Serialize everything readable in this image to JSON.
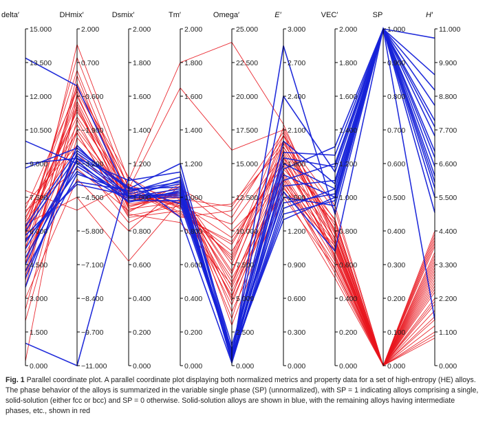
{
  "chart_data": {
    "type": "parallel_coordinates",
    "axes": [
      {
        "name": "delta′",
        "italic": false,
        "min": 0,
        "max": 15,
        "ticks": [
          "0.000",
          "1.500",
          "3.000",
          "4.500",
          "6.000",
          "7.500",
          "9.000",
          "10.500",
          "12.000",
          "13.500",
          "15.000"
        ]
      },
      {
        "name": "DHmix′",
        "italic": false,
        "min": -11,
        "max": 2,
        "ticks": [
          "−11.000",
          "−9.700",
          "−8.400",
          "−7.100",
          "−5.800",
          "−4.500",
          "−3.200",
          "−1.900",
          "−0.600",
          "0.700",
          "2.000"
        ]
      },
      {
        "name": "Dsmix′",
        "italic": false,
        "min": 0,
        "max": 2,
        "ticks": [
          "0.000",
          "0.200",
          "0.400",
          "0.600",
          "0.800",
          "1.000",
          "1.200",
          "1.400",
          "1.600",
          "1.800",
          "2.000"
        ]
      },
      {
        "name": "Tm′",
        "italic": false,
        "min": 0,
        "max": 2,
        "ticks": [
          "0.000",
          "0.200",
          "0.400",
          "0.600",
          "0.800",
          "1.000",
          "1.200",
          "1.400",
          "1.600",
          "1.800",
          "2.000"
        ]
      },
      {
        "name": "Omega′",
        "italic": false,
        "min": 0,
        "max": 25,
        "ticks": [
          "0.000",
          "2.500",
          "5.000",
          "7.500",
          "10.000",
          "12.500",
          "15.000",
          "17.500",
          "20.000",
          "22.500",
          "25.000"
        ]
      },
      {
        "name": "E′",
        "italic": true,
        "min": 0,
        "max": 3,
        "ticks": [
          "0.000",
          "0.300",
          "0.600",
          "0.900",
          "1.200",
          "1.500",
          "1.800",
          "2.100",
          "2.400",
          "2.700",
          "3.000"
        ]
      },
      {
        "name": "VEC′",
        "italic": false,
        "min": 0,
        "max": 2,
        "ticks": [
          "0.000",
          "0.200",
          "0.400",
          "0.600",
          "0.800",
          "1.000",
          "1.200",
          "1.400",
          "1.600",
          "1.800",
          "2.000"
        ]
      },
      {
        "name": "SP",
        "italic": false,
        "min": 0,
        "max": 1,
        "ticks": [
          "0.000",
          "0.100",
          "0.200",
          "0.300",
          "0.400",
          "0.500",
          "0.600",
          "0.700",
          "0.800",
          "0.900",
          "1.000"
        ]
      },
      {
        "name": "H′",
        "italic": true,
        "min": 0,
        "max": 11,
        "ticks": [
          "0.000",
          "1.100",
          "2.200",
          "3.300",
          "4.400",
          "5.500",
          "6.600",
          "7.700",
          "8.800",
          "9.900",
          "11.000"
        ]
      }
    ],
    "series": [
      {
        "color": "#e8141c",
        "lines": [
          [
            4.5,
            1.4,
            1.1,
            1.8,
            24.0,
            2.15,
            0.75,
            0,
            3.9
          ],
          [
            5.5,
            0.9,
            1.05,
            1.65,
            16.0,
            2.1,
            0.7,
            0,
            4.2
          ],
          [
            6.0,
            0.4,
            1.0,
            1.05,
            11.0,
            2.05,
            0.75,
            0,
            3.5
          ],
          [
            6.2,
            -0.2,
            1.02,
            0.95,
            8.0,
            2.0,
            0.78,
            0,
            2.5
          ],
          [
            3.5,
            0.2,
            0.95,
            1.0,
            5.0,
            1.95,
            0.8,
            0,
            1.5
          ],
          [
            5.8,
            -0.8,
            0.98,
            1.02,
            7.0,
            1.9,
            0.72,
            0,
            2.0
          ],
          [
            6.5,
            -1.2,
            1.05,
            0.9,
            9.0,
            1.85,
            0.65,
            0,
            3.0
          ],
          [
            2.5,
            -1.5,
            0.9,
            0.85,
            6.0,
            1.8,
            0.68,
            0,
            2.8
          ],
          [
            0.2,
            -0.5,
            0.93,
            0.97,
            4.5,
            1.75,
            0.85,
            0,
            4.0
          ],
          [
            6.8,
            -2.0,
            0.88,
            0.92,
            8.5,
            1.7,
            0.62,
            0,
            3.3
          ],
          [
            7.2,
            -2.5,
            1.0,
            1.05,
            10.0,
            1.65,
            0.55,
            0,
            2.2
          ],
          [
            5.0,
            -3.0,
            0.85,
            0.99,
            5.5,
            1.6,
            0.6,
            0,
            1.0
          ],
          [
            3.0,
            -3.8,
            0.8,
            1.07,
            4.0,
            1.5,
            0.58,
            0,
            3.6
          ],
          [
            6.3,
            -4.5,
            0.62,
            0.98,
            6.5,
            1.55,
            0.52,
            0,
            2.6
          ],
          [
            7.8,
            -5.0,
            1.08,
            0.88,
            11.5,
            2.0,
            0.92,
            0,
            1.8
          ],
          [
            4.2,
            -1.0,
            0.94,
            1.03,
            7.5,
            2.05,
            0.95,
            0,
            2.9
          ],
          [
            5.2,
            -0.3,
            1.12,
            0.93,
            12.0,
            1.95,
            0.83,
            0,
            0.9
          ],
          [
            6.1,
            -1.7,
            0.96,
            1.01,
            3.5,
            1.85,
            0.87,
            0,
            4.4
          ],
          [
            2.0,
            -2.2,
            1.01,
            0.96,
            9.5,
            1.78,
            0.74,
            0,
            3.1
          ],
          [
            5.6,
            -0.6,
            0.99,
            1.0,
            6.2,
            1.72,
            0.66,
            0,
            1.6
          ],
          [
            6.6,
            -1.4,
            1.03,
            0.94,
            10.5,
            1.88,
            0.63,
            0,
            4.1
          ],
          [
            4.8,
            -2.8,
            0.97,
            1.06,
            4.8,
            1.62,
            0.69,
            0,
            2.4
          ],
          [
            3.8,
            -0.1,
            1.06,
            0.91,
            8.2,
            2.12,
            0.79,
            0,
            3.7
          ],
          [
            6.9,
            -3.4,
            0.92,
            1.04,
            5.8,
            1.68,
            0.57,
            0,
            1.3
          ],
          [
            5.3,
            -1.9,
            1.0,
            0.97,
            7.8,
            1.92,
            0.81,
            0,
            2.7
          ],
          [
            4.0,
            -0.9,
            0.91,
            1.08,
            3.0,
            1.58,
            0.71,
            0,
            3.2
          ],
          [
            6.4,
            -2.6,
            1.04,
            0.89,
            9.2,
            1.82,
            0.76,
            0,
            1.1
          ],
          [
            5.9,
            -1.1,
            0.95,
            1.02,
            6.8,
            1.98,
            0.86,
            0,
            4.3
          ],
          [
            7.0,
            -0.4,
            1.07,
            0.99,
            11.8,
            2.08,
            0.64,
            0,
            2.1
          ],
          [
            4.6,
            -2.0,
            0.89,
            0.95,
            5.2,
            1.66,
            0.73,
            0,
            3.4
          ]
        ]
      },
      {
        "color": "#1622d8",
        "lines": [
          [
            13.7,
            -0.2,
            1.0,
            1.05,
            0.5,
            2.85,
            0.9,
            1,
            10.7
          ],
          [
            9.0,
            -3.0,
            1.1,
            1.15,
            0.8,
            2.4,
            1.15,
            1,
            9.5
          ],
          [
            8.8,
            -2.6,
            1.05,
            1.2,
            1.0,
            1.9,
            1.25,
            1,
            8.5
          ],
          [
            10.0,
            -3.2,
            1.0,
            1.1,
            0.5,
            1.8,
            1.05,
            1,
            7.5
          ],
          [
            6.0,
            -2.9,
            1.02,
            1.08,
            0.3,
            1.7,
            1.0,
            1,
            6.8
          ],
          [
            5.8,
            -4.0,
            1.01,
            1.02,
            0.6,
            1.6,
            1.1,
            1,
            6.2
          ],
          [
            5.5,
            -3.5,
            0.98,
            0.98,
            1.2,
            1.5,
            0.95,
            1,
            5.8
          ],
          [
            4.5,
            -2.8,
            1.05,
            1.06,
            0.4,
            1.4,
            1.05,
            1,
            5.5
          ],
          [
            3.5,
            -2.5,
            1.0,
            1.0,
            0.8,
            1.3,
            1.0,
            1,
            5.0
          ],
          [
            1.0,
            -11.0,
            1.12,
            0.88,
            0.2,
            1.55,
            0.68,
            1,
            1.5
          ],
          [
            4.2,
            -3.6,
            1.03,
            1.12,
            1.5,
            1.75,
            1.3,
            1,
            7.0
          ],
          [
            5.2,
            -3.1,
            0.97,
            1.04,
            0.7,
            1.65,
            1.2,
            1,
            6.5
          ],
          [
            6.2,
            -2.7,
            1.06,
            0.96,
            0.9,
            1.85,
            1.18,
            1,
            8.0
          ],
          [
            4.8,
            -3.3,
            0.99,
            1.03,
            1.1,
            2.0,
            1.08,
            1,
            7.8
          ],
          [
            5.6,
            -3.9,
            1.04,
            1.09,
            0.4,
            1.45,
            1.02,
            1,
            6.0
          ],
          [
            3.9,
            -3.0,
            1.01,
            1.01,
            0.6,
            1.35,
            0.98,
            1,
            9.0
          ]
        ]
      }
    ]
  },
  "caption": {
    "label": "Fig. 1",
    "text": " Parallel coordinate plot. A parallel coordinate plot displaying both normalized metrics and property data for a set of high-entropy (HE) alloys. The phase behavior of the alloys is summarized in the variable single phase (SP) (unnormalized), with SP = 1 indicating alloys comprising a single, solid-solution (either fcc or bcc) and SP = 0 otherwise. Solid-solution alloys are shown in blue, with the remaining alloys having intermediate phases, etc., shown in red"
  }
}
